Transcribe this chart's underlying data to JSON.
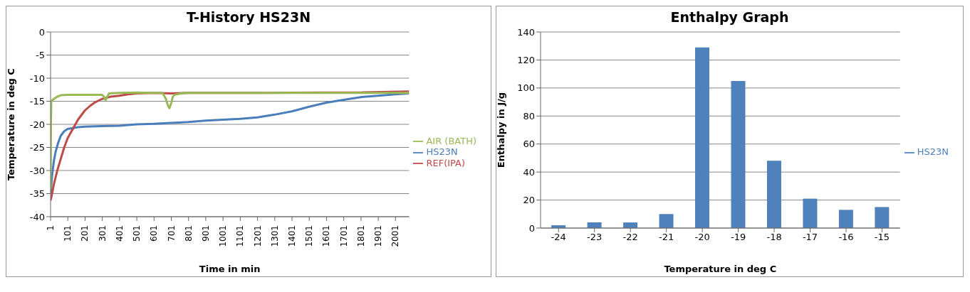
{
  "chart_data": [
    {
      "type": "line",
      "title": "T-History HS23N",
      "xlabel": "Time in min",
      "ylabel": "Temperature in deg C",
      "xlim": [
        1,
        2080
      ],
      "xticks": [
        1,
        101,
        201,
        301,
        401,
        501,
        601,
        701,
        801,
        901,
        1001,
        1101,
        1201,
        1301,
        1401,
        1501,
        1601,
        1701,
        1801,
        1901,
        2001
      ],
      "ylim": [
        -40,
        0
      ],
      "yticks": [
        -40,
        -35,
        -30,
        -25,
        -20,
        -15,
        -10,
        -5,
        0
      ],
      "grid": "y",
      "legend": "right",
      "marker": "none",
      "line_style": "solid",
      "series": [
        {
          "name": "HS23N",
          "color": "#4a7ebb",
          "x": [
            1,
            10,
            20,
            30,
            45,
            60,
            80,
            100,
            130,
            160,
            200,
            300,
            400,
            500,
            600,
            700,
            800,
            900,
            1000,
            1100,
            1200,
            1300,
            1400,
            1500,
            1600,
            1700,
            1800,
            1900,
            2000,
            2080
          ],
          "values": [
            -35,
            -31,
            -28,
            -26,
            -24,
            -22.5,
            -21.5,
            -21,
            -20.8,
            -20.6,
            -20.5,
            -20.4,
            -20.3,
            -20,
            -19.9,
            -19.7,
            -19.5,
            -19.2,
            -19,
            -18.8,
            -18.5,
            -17.9,
            -17.2,
            -16.2,
            -15.3,
            -14.7,
            -14.1,
            -13.8,
            -13.5,
            -13.3
          ]
        },
        {
          "name": "REF(IPA)",
          "color": "#be4b48",
          "x": [
            1,
            10,
            20,
            40,
            60,
            80,
            100,
            130,
            160,
            180,
            200,
            230,
            260,
            300,
            350,
            400,
            450,
            500,
            600,
            700,
            800,
            1000,
            1200,
            1600,
            1800,
            2080
          ],
          "values": [
            -36.5,
            -35,
            -33,
            -30,
            -27.5,
            -25,
            -23,
            -21,
            -19,
            -18,
            -17,
            -16,
            -15.2,
            -14.5,
            -14,
            -13.8,
            -13.5,
            -13.3,
            -13.2,
            -13.3,
            -13.2,
            -13.2,
            -13.2,
            -13.1,
            -13.1,
            -12.9
          ]
        },
        {
          "name": "AIR (BATH)",
          "color": "#98b954",
          "x": [
            1,
            3,
            5,
            10,
            20,
            40,
            60,
            100,
            200,
            300,
            310,
            320,
            330,
            340,
            400,
            500,
            600,
            650,
            670,
            680,
            690,
            700,
            710,
            720,
            760,
            800,
            1000,
            1200,
            1400,
            1600,
            1800,
            2000,
            2080
          ],
          "values": [
            -34,
            -20,
            -15,
            -14.8,
            -14.5,
            -14,
            -13.7,
            -13.6,
            -13.6,
            -13.6,
            -14,
            -14.8,
            -14,
            -13.3,
            -13.2,
            -13.1,
            -13.2,
            -13.2,
            -14.5,
            -15.8,
            -16.5,
            -15.5,
            -14,
            -13.6,
            -13.3,
            -13.2,
            -13.2,
            -13.2,
            -13.2,
            -13.2,
            -13.2,
            -13.2,
            -13.2
          ]
        }
      ]
    },
    {
      "type": "bar",
      "title": "Enthalpy Graph",
      "xlabel": "Temperature in deg C",
      "ylabel": "Enthalpy in J/g",
      "categories": [
        "-24",
        "-23",
        "-22",
        "-21",
        "-20",
        "-19",
        "-18",
        "-17",
        "-16",
        "-15"
      ],
      "ylim": [
        0,
        140
      ],
      "yticks": [
        0,
        20,
        40,
        60,
        80,
        100,
        120,
        140
      ],
      "grid": "y",
      "legend": "right",
      "series": [
        {
          "name": "HS23N",
          "color": "#4f81bd",
          "values": [
            2,
            4,
            4,
            10,
            129,
            105,
            48,
            21,
            13,
            15
          ]
        }
      ]
    }
  ]
}
